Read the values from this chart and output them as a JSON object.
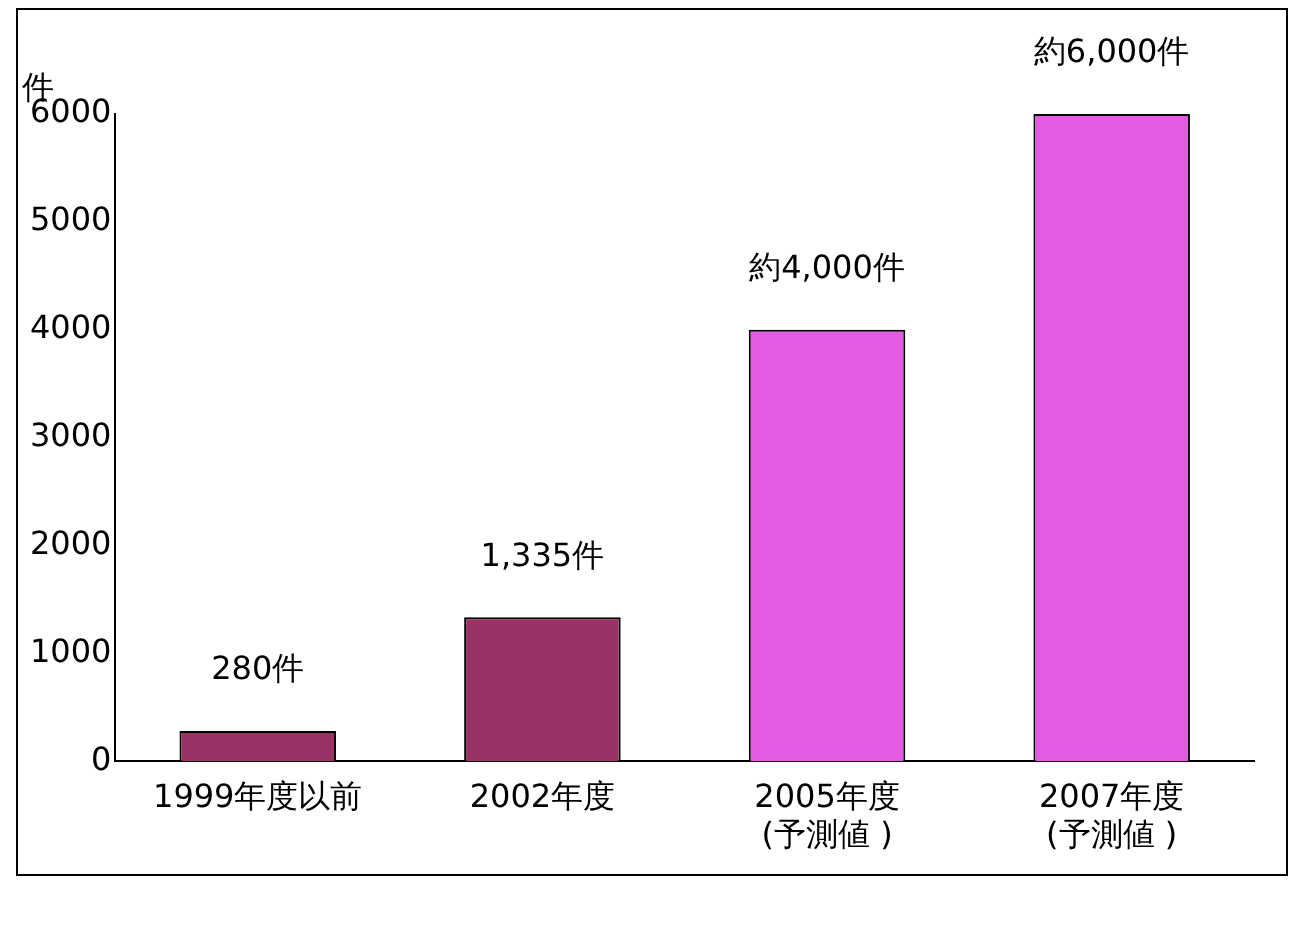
{
  "chart_data": {
    "type": "bar",
    "ylabel": "件",
    "categories": [
      "1999年度以前",
      "2002年度",
      "2005年度\n(予測値 )",
      "2007年度\n(予測値 )"
    ],
    "values": [
      280,
      1335,
      4000,
      6000
    ],
    "colors": [
      "#993366",
      "#993366",
      "#e35ae3",
      "#e35ae3"
    ],
    "value_labels": [
      "280件",
      "1,335件",
      "約4,000件",
      "約6,000件"
    ],
    "ylim": [
      0,
      6000
    ],
    "yticks": [
      0,
      1000,
      2000,
      3000,
      4000,
      5000,
      6000
    ],
    "grid": false,
    "legend": false
  }
}
